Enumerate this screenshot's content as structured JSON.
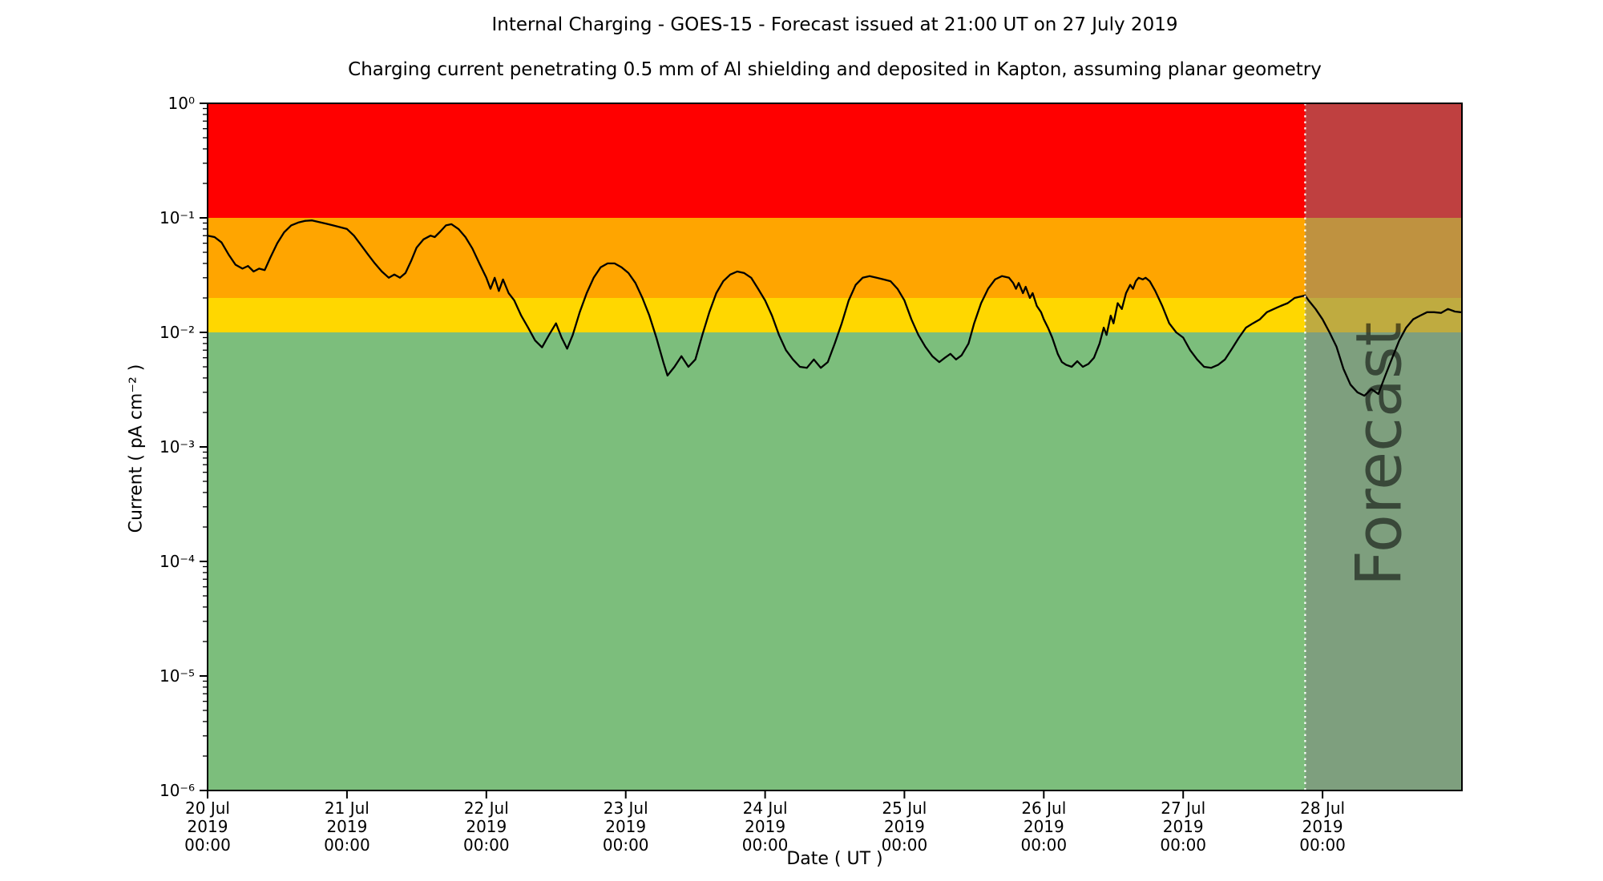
{
  "chart_data": {
    "type": "line",
    "title": "Internal Charging - GOES-15 - Forecast issued at 21:00 UT on 27 July 2019",
    "subtitle": "Charging current penetrating 0.5 mm of Al shielding and deposited in Kapton, assuming planar geometry",
    "xlabel": "Date ( UT )",
    "ylabel": "Current ( pA cm⁻² )",
    "y_scale": "log",
    "ylim": [
      1e-06,
      1
    ],
    "xlim_days": [
      0,
      9
    ],
    "grid": false,
    "legend": "none",
    "y_ticks": [
      {
        "value": 1,
        "label": "10⁰"
      },
      {
        "value": 0.1,
        "label": "10⁻¹"
      },
      {
        "value": 0.01,
        "label": "10⁻²"
      },
      {
        "value": 0.001,
        "label": "10⁻³"
      },
      {
        "value": 0.0001,
        "label": "10⁻⁴"
      },
      {
        "value": 1e-05,
        "label": "10⁻⁵"
      },
      {
        "value": 1e-06,
        "label": "10⁻⁶"
      }
    ],
    "x_ticks": [
      {
        "day": 0,
        "label": [
          "20 Jul",
          "2019",
          "00:00"
        ]
      },
      {
        "day": 1,
        "label": [
          "21 Jul",
          "2019",
          "00:00"
        ]
      },
      {
        "day": 2,
        "label": [
          "22 Jul",
          "2019",
          "00:00"
        ]
      },
      {
        "day": 3,
        "label": [
          "23 Jul",
          "2019",
          "00:00"
        ]
      },
      {
        "day": 4,
        "label": [
          "24 Jul",
          "2019",
          "00:00"
        ]
      },
      {
        "day": 5,
        "label": [
          "25 Jul",
          "2019",
          "00:00"
        ]
      },
      {
        "day": 6,
        "label": [
          "26 Jul",
          "2019",
          "00:00"
        ]
      },
      {
        "day": 7,
        "label": [
          "27 Jul",
          "2019",
          "00:00"
        ]
      },
      {
        "day": 8,
        "label": [
          "28 Jul",
          "2019",
          "00:00"
        ]
      }
    ],
    "bands": [
      {
        "name": "red",
        "from": 0.1,
        "to": 1,
        "color": "#ff0000"
      },
      {
        "name": "orange",
        "from": 0.02,
        "to": 0.1,
        "color": "#ffa500"
      },
      {
        "name": "yellow",
        "from": 0.01,
        "to": 0.02,
        "color": "#ffd700"
      },
      {
        "name": "green",
        "from": 1e-06,
        "to": 0.01,
        "color": "#7cbe7c"
      }
    ],
    "forecast": {
      "start_day": 7.875,
      "label": "Forecast",
      "overlay_color": "#808080",
      "overlay_opacity": 0.5,
      "watermark_color": "#404040",
      "watermark_opacity": 0.55,
      "divider_color": "#ffffff"
    },
    "series": [
      {
        "name": "charging-current",
        "color": "#000000",
        "points": [
          [
            0,
            0.07
          ],
          [
            0.05,
            0.068
          ],
          [
            0.1,
            0.061
          ],
          [
            0.15,
            0.048
          ],
          [
            0.2,
            0.039
          ],
          [
            0.25,
            0.036
          ],
          [
            0.29,
            0.038
          ],
          [
            0.33,
            0.034
          ],
          [
            0.37,
            0.036
          ],
          [
            0.41,
            0.035
          ],
          [
            0.45,
            0.045
          ],
          [
            0.5,
            0.06
          ],
          [
            0.55,
            0.075
          ],
          [
            0.6,
            0.086
          ],
          [
            0.65,
            0.091
          ],
          [
            0.7,
            0.094
          ],
          [
            0.75,
            0.095
          ],
          [
            0.8,
            0.092
          ],
          [
            0.85,
            0.089
          ],
          [
            0.9,
            0.086
          ],
          [
            0.95,
            0.083
          ],
          [
            1,
            0.08
          ],
          [
            1.05,
            0.07
          ],
          [
            1.1,
            0.058
          ],
          [
            1.15,
            0.048
          ],
          [
            1.2,
            0.04
          ],
          [
            1.25,
            0.034
          ],
          [
            1.3,
            0.03
          ],
          [
            1.34,
            0.032
          ],
          [
            1.38,
            0.03
          ],
          [
            1.42,
            0.033
          ],
          [
            1.46,
            0.042
          ],
          [
            1.5,
            0.055
          ],
          [
            1.55,
            0.065
          ],
          [
            1.6,
            0.07
          ],
          [
            1.63,
            0.068
          ],
          [
            1.67,
            0.076
          ],
          [
            1.71,
            0.086
          ],
          [
            1.75,
            0.088
          ],
          [
            1.8,
            0.08
          ],
          [
            1.85,
            0.068
          ],
          [
            1.9,
            0.054
          ],
          [
            1.95,
            0.04
          ],
          [
            2,
            0.03
          ],
          [
            2.03,
            0.024
          ],
          [
            2.06,
            0.03
          ],
          [
            2.09,
            0.023
          ],
          [
            2.12,
            0.029
          ],
          [
            2.16,
            0.022
          ],
          [
            2.2,
            0.019
          ],
          [
            2.25,
            0.014
          ],
          [
            2.3,
            0.011
          ],
          [
            2.35,
            0.0085
          ],
          [
            2.4,
            0.0074
          ],
          [
            2.45,
            0.0095
          ],
          [
            2.5,
            0.012
          ],
          [
            2.54,
            0.009
          ],
          [
            2.58,
            0.0072
          ],
          [
            2.62,
            0.0095
          ],
          [
            2.67,
            0.015
          ],
          [
            2.72,
            0.022
          ],
          [
            2.77,
            0.03
          ],
          [
            2.82,
            0.037
          ],
          [
            2.87,
            0.04
          ],
          [
            2.92,
            0.04
          ],
          [
            2.97,
            0.037
          ],
          [
            3.02,
            0.033
          ],
          [
            3.07,
            0.027
          ],
          [
            3.12,
            0.02
          ],
          [
            3.17,
            0.014
          ],
          [
            3.22,
            0.009
          ],
          [
            3.27,
            0.0055
          ],
          [
            3.3,
            0.0042
          ],
          [
            3.35,
            0.005
          ],
          [
            3.4,
            0.0062
          ],
          [
            3.45,
            0.005
          ],
          [
            3.5,
            0.0058
          ],
          [
            3.55,
            0.0095
          ],
          [
            3.6,
            0.015
          ],
          [
            3.65,
            0.022
          ],
          [
            3.7,
            0.028
          ],
          [
            3.75,
            0.032
          ],
          [
            3.8,
            0.034
          ],
          [
            3.85,
            0.033
          ],
          [
            3.9,
            0.03
          ],
          [
            3.95,
            0.024
          ],
          [
            4,
            0.019
          ],
          [
            4.05,
            0.014
          ],
          [
            4.1,
            0.0095
          ],
          [
            4.15,
            0.007
          ],
          [
            4.2,
            0.0058
          ],
          [
            4.25,
            0.005
          ],
          [
            4.3,
            0.0049
          ],
          [
            4.35,
            0.0058
          ],
          [
            4.4,
            0.0049
          ],
          [
            4.45,
            0.0055
          ],
          [
            4.5,
            0.008
          ],
          [
            4.55,
            0.012
          ],
          [
            4.6,
            0.019
          ],
          [
            4.65,
            0.026
          ],
          [
            4.7,
            0.03
          ],
          [
            4.75,
            0.031
          ],
          [
            4.8,
            0.03
          ],
          [
            4.85,
            0.029
          ],
          [
            4.9,
            0.028
          ],
          [
            4.95,
            0.024
          ],
          [
            5,
            0.019
          ],
          [
            5.05,
            0.013
          ],
          [
            5.1,
            0.0095
          ],
          [
            5.15,
            0.0075
          ],
          [
            5.2,
            0.0062
          ],
          [
            5.25,
            0.0055
          ],
          [
            5.29,
            0.006
          ],
          [
            5.33,
            0.0065
          ],
          [
            5.37,
            0.0058
          ],
          [
            5.41,
            0.0063
          ],
          [
            5.46,
            0.008
          ],
          [
            5.5,
            0.012
          ],
          [
            5.55,
            0.018
          ],
          [
            5.6,
            0.024
          ],
          [
            5.65,
            0.029
          ],
          [
            5.7,
            0.031
          ],
          [
            5.75,
            0.03
          ],
          [
            5.78,
            0.027
          ],
          [
            5.8,
            0.024
          ],
          [
            5.82,
            0.027
          ],
          [
            5.85,
            0.022
          ],
          [
            5.87,
            0.025
          ],
          [
            5.9,
            0.02
          ],
          [
            5.92,
            0.022
          ],
          [
            5.95,
            0.017
          ],
          [
            5.98,
            0.015
          ],
          [
            6,
            0.013
          ],
          [
            6.03,
            0.011
          ],
          [
            6.06,
            0.009
          ],
          [
            6.1,
            0.0065
          ],
          [
            6.13,
            0.0055
          ],
          [
            6.16,
            0.0052
          ],
          [
            6.2,
            0.005
          ],
          [
            6.24,
            0.0056
          ],
          [
            6.28,
            0.005
          ],
          [
            6.32,
            0.0053
          ],
          [
            6.36,
            0.006
          ],
          [
            6.4,
            0.008
          ],
          [
            6.43,
            0.011
          ],
          [
            6.45,
            0.0095
          ],
          [
            6.48,
            0.014
          ],
          [
            6.5,
            0.012
          ],
          [
            6.53,
            0.018
          ],
          [
            6.56,
            0.016
          ],
          [
            6.59,
            0.022
          ],
          [
            6.62,
            0.026
          ],
          [
            6.64,
            0.024
          ],
          [
            6.66,
            0.028
          ],
          [
            6.68,
            0.03
          ],
          [
            6.71,
            0.029
          ],
          [
            6.73,
            0.03
          ],
          [
            6.76,
            0.028
          ],
          [
            6.8,
            0.023
          ],
          [
            6.85,
            0.017
          ],
          [
            6.9,
            0.012
          ],
          [
            6.95,
            0.01
          ],
          [
            7,
            0.009
          ],
          [
            7.05,
            0.007
          ],
          [
            7.1,
            0.0058
          ],
          [
            7.15,
            0.005
          ],
          [
            7.2,
            0.0049
          ],
          [
            7.25,
            0.0052
          ],
          [
            7.3,
            0.0058
          ],
          [
            7.35,
            0.0072
          ],
          [
            7.4,
            0.009
          ],
          [
            7.45,
            0.011
          ],
          [
            7.5,
            0.012
          ],
          [
            7.55,
            0.013
          ],
          [
            7.6,
            0.015
          ],
          [
            7.65,
            0.016
          ],
          [
            7.7,
            0.017
          ],
          [
            7.75,
            0.018
          ],
          [
            7.8,
            0.02
          ],
          [
            7.875,
            0.021
          ],
          [
            7.9,
            0.019
          ],
          [
            7.95,
            0.016
          ],
          [
            8,
            0.013
          ],
          [
            8.05,
            0.01
          ],
          [
            8.1,
            0.0075
          ],
          [
            8.15,
            0.0048
          ],
          [
            8.2,
            0.0035
          ],
          [
            8.25,
            0.003
          ],
          [
            8.3,
            0.0028
          ],
          [
            8.35,
            0.0032
          ],
          [
            8.4,
            0.0029
          ],
          [
            8.45,
            0.0042
          ],
          [
            8.5,
            0.006
          ],
          [
            8.55,
            0.0085
          ],
          [
            8.6,
            0.011
          ],
          [
            8.65,
            0.013
          ],
          [
            8.7,
            0.014
          ],
          [
            8.75,
            0.015
          ],
          [
            8.8,
            0.015
          ],
          [
            8.85,
            0.0148
          ],
          [
            8.9,
            0.016
          ],
          [
            8.95,
            0.0152
          ],
          [
            8.99,
            0.015
          ]
        ]
      }
    ]
  }
}
